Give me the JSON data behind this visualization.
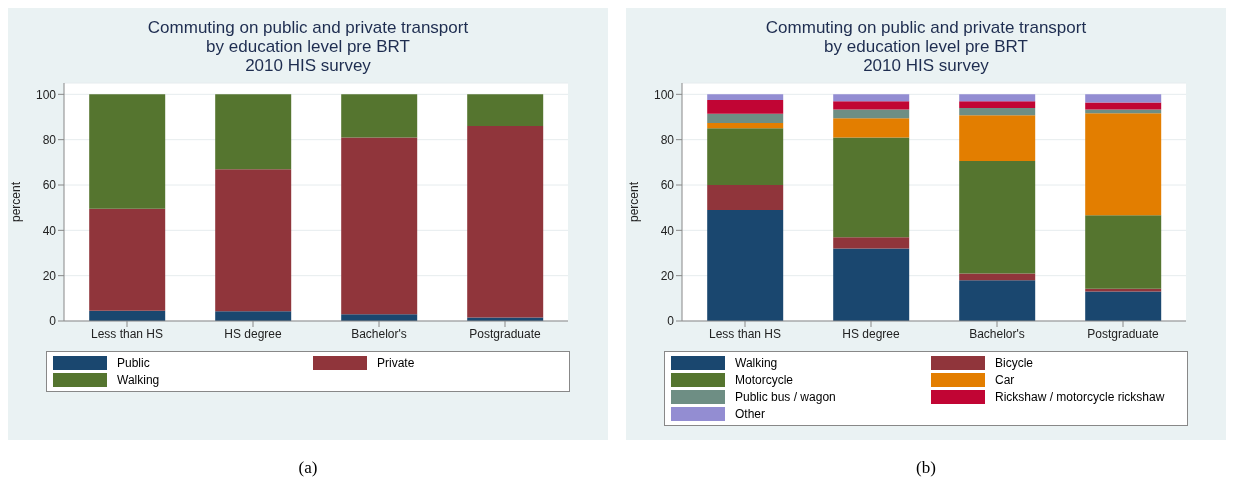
{
  "chart_data": [
    {
      "type": "bar",
      "title": "Commuting on public and private transport\nby education level pre BRT\n2010 HIS survey",
      "ylabel": "percent",
      "categories": [
        "Less than HS",
        "HS degree",
        "Bachelor's",
        "Postgraduate"
      ],
      "stacked": true,
      "ylim": [
        0,
        105
      ],
      "yticks": [
        0,
        20,
        40,
        60,
        80,
        100
      ],
      "grid": "y",
      "legend": "bottom",
      "annotations": [
        "(a)"
      ],
      "series": [
        {
          "name": "Public",
          "color": "#1a476f",
          "values": [
            4.5,
            4.3,
            3,
            1.5
          ]
        },
        {
          "name": "Private",
          "color": "#90353b",
          "values": [
            45,
            62.7,
            78,
            84.5
          ]
        },
        {
          "name": "Walking",
          "color": "#55752f",
          "values": [
            50.5,
            33,
            19,
            14
          ]
        }
      ]
    },
    {
      "type": "bar",
      "title": "Commuting on public and private transport\nby education level pre BRT\n2010 HIS survey",
      "ylabel": "percent",
      "categories": [
        "Less than HS",
        "HS degree",
        "Bachelor's",
        "Postgraduate"
      ],
      "stacked": true,
      "ylim": [
        0,
        105
      ],
      "yticks": [
        0,
        20,
        40,
        60,
        80,
        100
      ],
      "grid": "y",
      "legend": "bottom",
      "annotations": [
        "(b)"
      ],
      "series": [
        {
          "name": "Walking",
          "color": "#1a476f",
          "values": [
            49,
            32,
            18,
            13
          ]
        },
        {
          "name": "Bicycle",
          "color": "#90353b",
          "values": [
            11,
            5,
            3,
            1.2
          ]
        },
        {
          "name": "Motorcycle",
          "color": "#55752f",
          "values": [
            25,
            44,
            49.6,
            32.4
          ]
        },
        {
          "name": "Car",
          "color": "#e37e00",
          "values": [
            2.3,
            8.4,
            20.2,
            45
          ]
        },
        {
          "name": "Public bus / wagon",
          "color": "#6e8e84",
          "values": [
            4.1,
            3.9,
            3.2,
            1.7
          ]
        },
        {
          "name": "Rickshaw / motorcycle rickshaw",
          "color": "#c10534",
          "values": [
            6.1,
            3.7,
            3,
            3.1
          ]
        },
        {
          "name": "Other",
          "color": "#938dd2",
          "values": [
            2.5,
            3,
            3,
            3.6
          ]
        }
      ]
    }
  ]
}
